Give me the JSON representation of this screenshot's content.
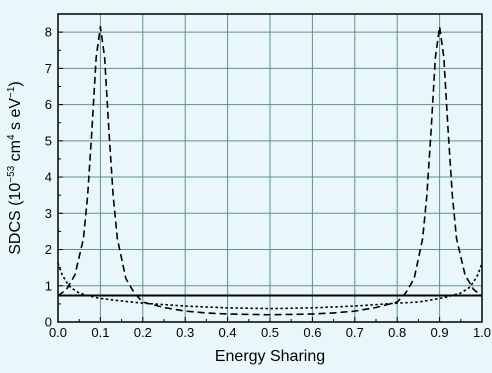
{
  "chart_data": {
    "type": "line",
    "xlabel": "Energy Sharing",
    "ylabel": {
      "prefix": "SDCS (10",
      "exp1": "−53",
      "mid1": " cm",
      "exp2": "4",
      "mid2": " s  eV",
      "exp3": "−1",
      "suffix": ")"
    },
    "xlim": [
      0,
      1
    ],
    "ylim": [
      0,
      8.5
    ],
    "xticks": [
      "0.0",
      "0.1",
      "0.2",
      "0.3",
      "0.4",
      "0.5",
      "0.6",
      "0.7",
      "0.8",
      "0.9",
      "1.0"
    ],
    "yticks": [
      "0",
      "1",
      "2",
      "3",
      "4",
      "5",
      "6",
      "7",
      "8"
    ],
    "grid": true,
    "series": [
      {
        "style": "solid",
        "x": [
          0.0,
          0.1,
          0.2,
          0.3,
          0.4,
          0.5,
          0.6,
          0.7,
          0.8,
          0.9,
          1.0
        ],
        "y": [
          0.73,
          0.73,
          0.73,
          0.73,
          0.73,
          0.73,
          0.73,
          0.73,
          0.73,
          0.73,
          0.73
        ]
      },
      {
        "style": "dashed",
        "x": [
          0.0,
          0.02,
          0.04,
          0.06,
          0.07,
          0.08,
          0.09,
          0.1,
          0.11,
          0.12,
          0.13,
          0.14,
          0.16,
          0.18,
          0.2,
          0.25,
          0.3,
          0.35,
          0.4,
          0.45,
          0.5,
          0.55,
          0.6,
          0.65,
          0.7,
          0.75,
          0.8,
          0.82,
          0.84,
          0.86,
          0.87,
          0.88,
          0.89,
          0.9,
          0.91,
          0.92,
          0.93,
          0.94,
          0.96,
          0.98,
          1.0
        ],
        "y": [
          0.72,
          0.9,
          1.3,
          2.3,
          3.5,
          5.3,
          7.3,
          8.15,
          7.3,
          5.3,
          3.5,
          2.3,
          1.2,
          0.8,
          0.55,
          0.4,
          0.3,
          0.25,
          0.22,
          0.21,
          0.2,
          0.21,
          0.22,
          0.25,
          0.3,
          0.4,
          0.55,
          0.8,
          1.2,
          2.3,
          3.5,
          5.3,
          7.3,
          8.15,
          7.3,
          5.3,
          3.5,
          2.3,
          1.3,
          0.9,
          0.72
        ]
      },
      {
        "style": "dotted",
        "x": [
          0.0,
          0.01,
          0.02,
          0.03,
          0.05,
          0.08,
          0.1,
          0.15,
          0.2,
          0.3,
          0.4,
          0.5,
          0.6,
          0.7,
          0.8,
          0.85,
          0.9,
          0.92,
          0.95,
          0.97,
          0.98,
          0.99,
          1.0
        ],
        "y": [
          1.62,
          1.3,
          1.1,
          0.95,
          0.8,
          0.7,
          0.65,
          0.58,
          0.52,
          0.44,
          0.39,
          0.37,
          0.39,
          0.44,
          0.52,
          0.55,
          0.65,
          0.7,
          0.8,
          0.95,
          1.1,
          1.3,
          1.62
        ]
      }
    ]
  }
}
